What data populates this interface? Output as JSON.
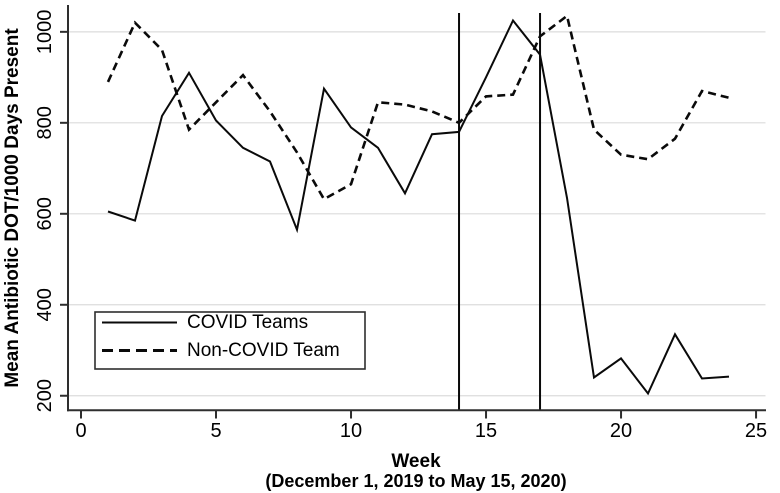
{
  "figure": {
    "y_axis_title": "Mean Antibiotic DOT/1000 Days Present",
    "x_axis_title": "Week",
    "x_axis_subtitle": "(December 1, 2019 to May 15, 2020)"
  },
  "legend": {
    "items": [
      {
        "label": "COVID Teams",
        "style": "solid"
      },
      {
        "label": "Non-COVID Team",
        "style": "dashed"
      }
    ]
  },
  "chart_data": {
    "type": "line",
    "title": "",
    "xlabel": "Week",
    "xlabel_note": "(December 1, 2019 to May 15, 2020)",
    "ylabel": "Mean Antibiotic DOT/1000 Days Present",
    "x": [
      1,
      2,
      3,
      4,
      5,
      6,
      7,
      8,
      9,
      10,
      11,
      12,
      13,
      14,
      15,
      16,
      17,
      18,
      19,
      20,
      21,
      22,
      23,
      24
    ],
    "series": [
      {
        "name": "COVID Teams",
        "style": "solid",
        "values": [
          605,
          585,
          815,
          910,
          805,
          745,
          715,
          565,
          875,
          790,
          745,
          645,
          775,
          780,
          900,
          1025,
          950,
          635,
          240,
          282,
          205,
          335,
          238,
          242
        ]
      },
      {
        "name": "Non-COVID Team",
        "style": "dashed",
        "values": [
          890,
          1020,
          960,
          785,
          845,
          905,
          825,
          735,
          632,
          665,
          845,
          840,
          825,
          800,
          858,
          862,
          990,
          1035,
          785,
          730,
          720,
          765,
          870,
          855
        ]
      }
    ],
    "x_ticks": [
      0,
      5,
      10,
      15,
      20,
      25
    ],
    "y_ticks": [
      200,
      400,
      600,
      800,
      1000
    ],
    "xlim": [
      -0.5,
      25.35
    ],
    "ylim": [
      168,
      1059
    ],
    "reference_lines_x": [
      14,
      17
    ],
    "grid": true,
    "legend_position": "lower-left",
    "colors": {
      "line": "#0a0a0a",
      "grid": "#dcdcdc",
      "axis": "#2e2e2e",
      "reference_line": "#0a0a0a",
      "background": "#ffffff"
    }
  }
}
